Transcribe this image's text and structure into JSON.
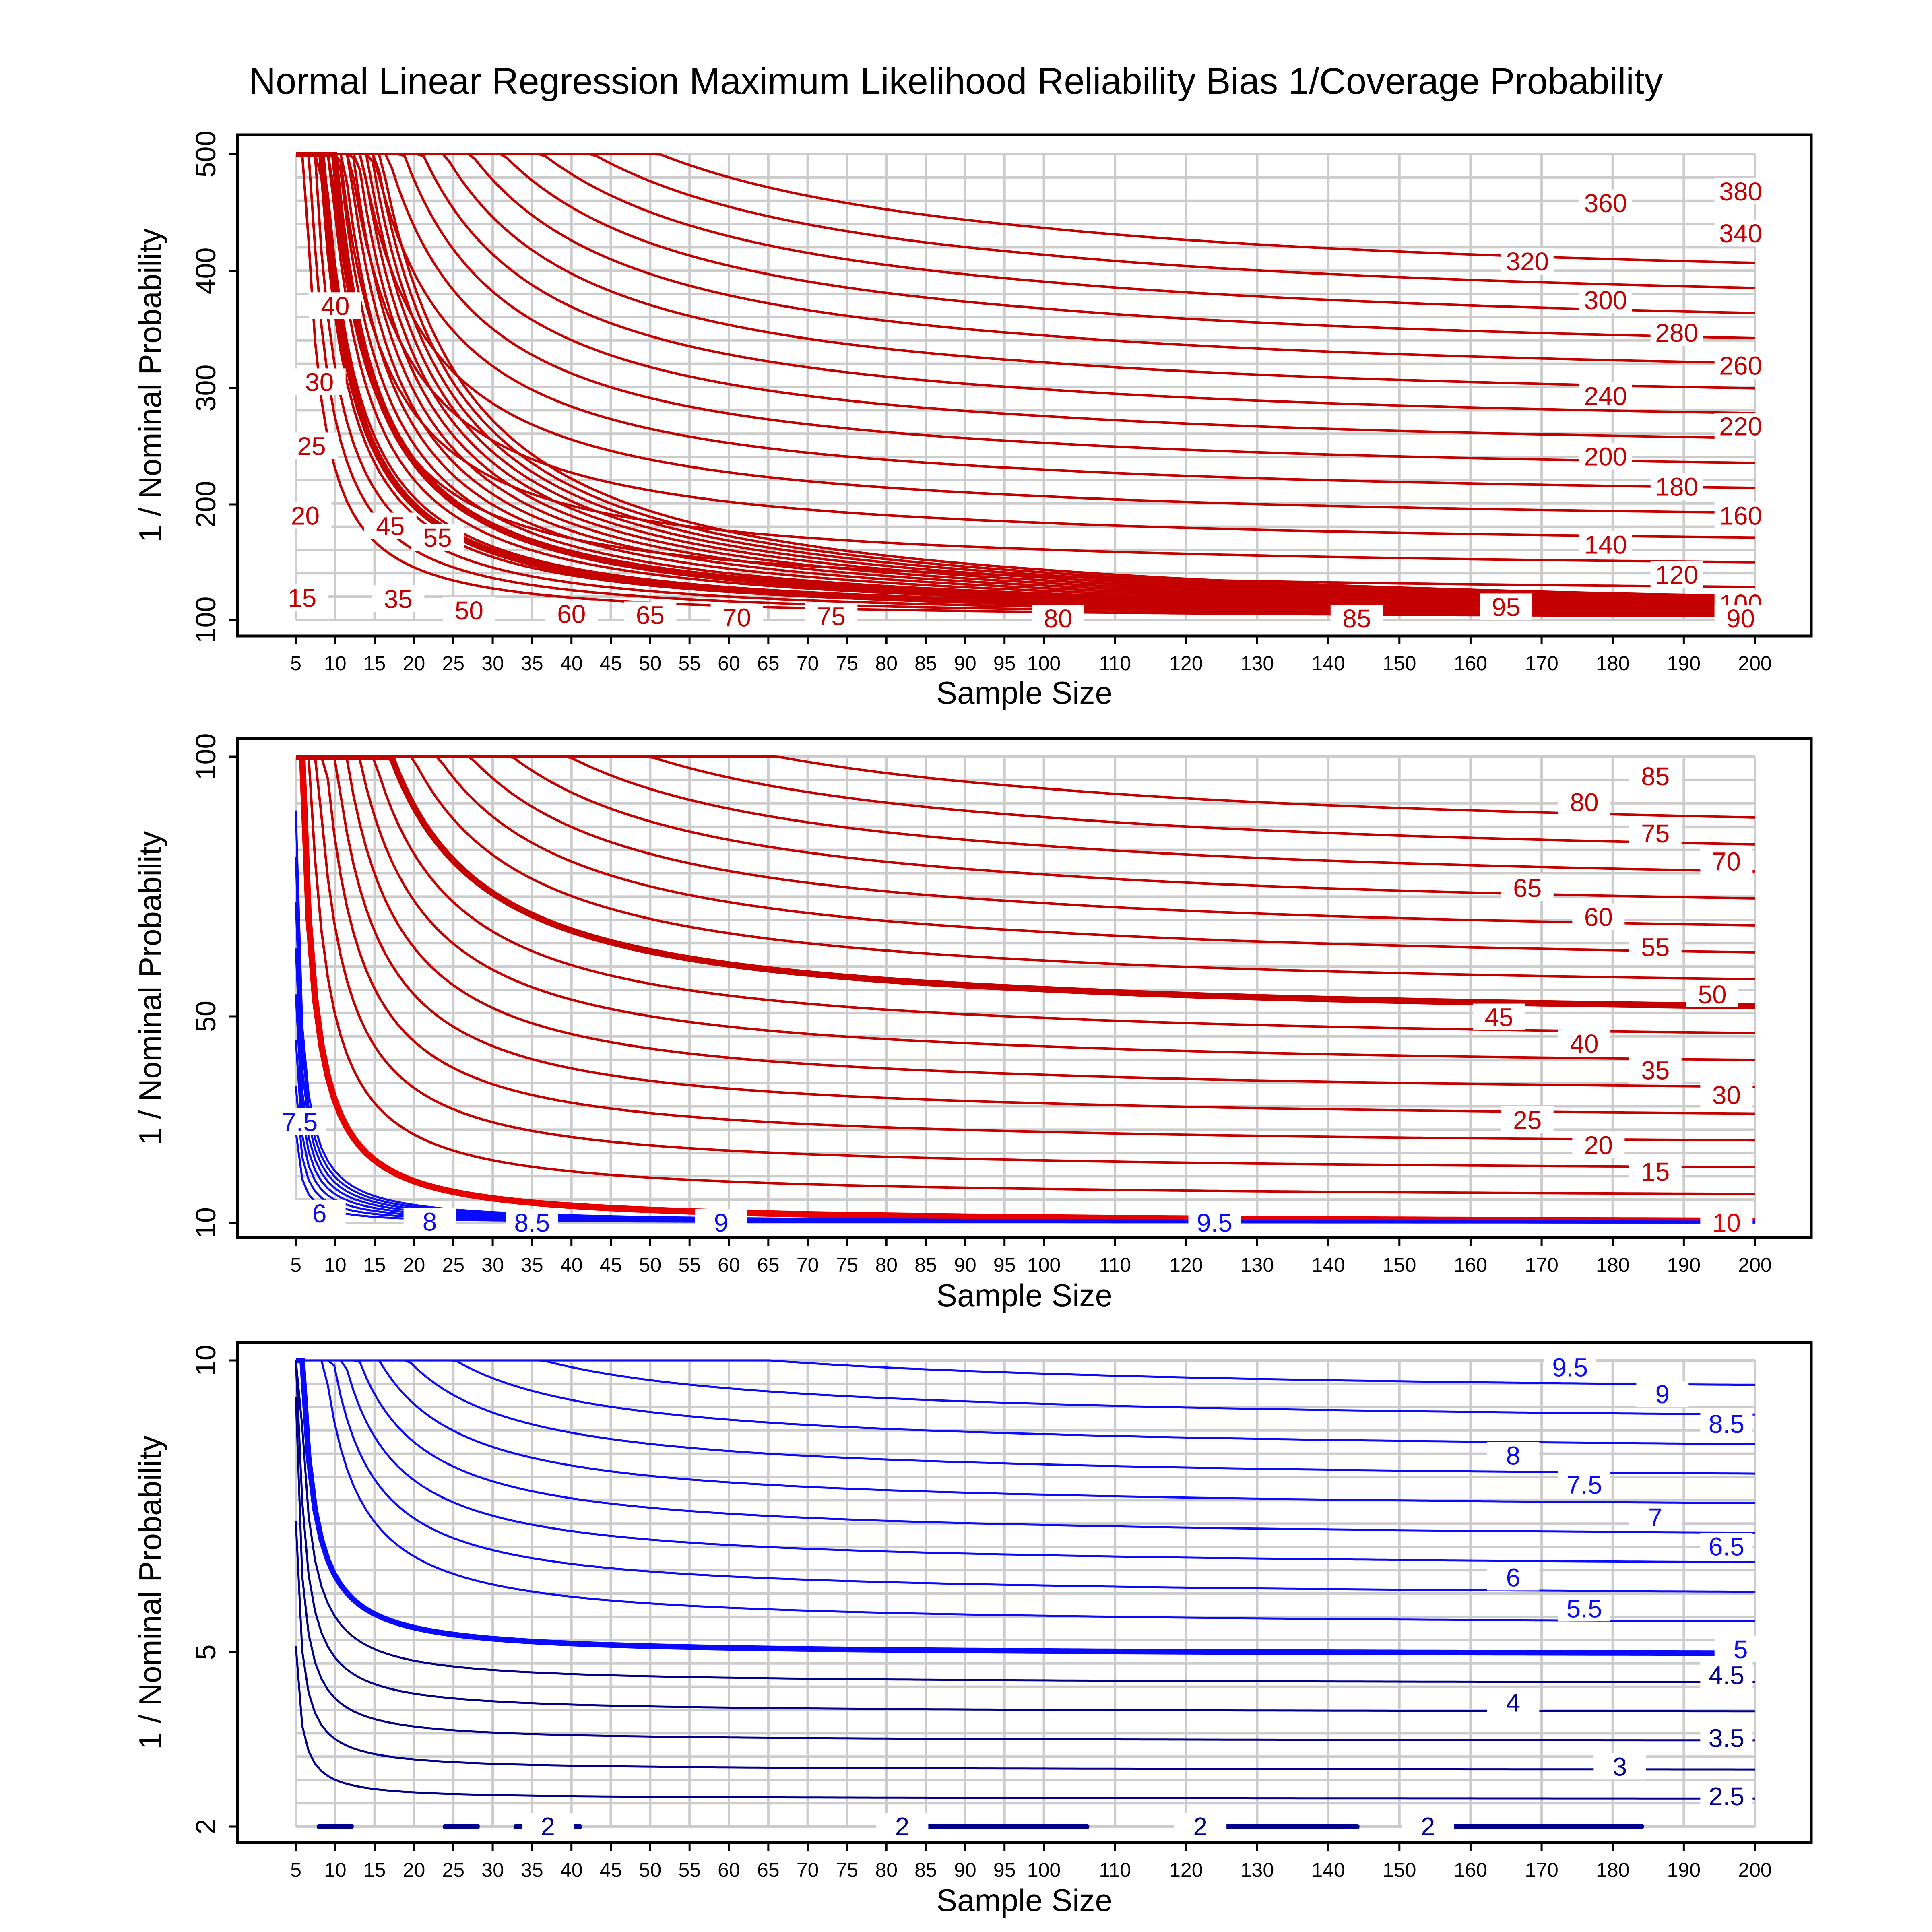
{
  "title": "Normal Linear Regression Maximum Likelihood Reliability Bias 1/Coverage Probability",
  "colors": {
    "red": "#e60000",
    "darkred": "#c40000",
    "blue": "#0a0aff",
    "navy": "#00008c"
  },
  "chart_data": [
    {
      "type": "line",
      "subtype": "contour",
      "panel": "top",
      "xlabel": "Sample Size",
      "ylabel": "1 / Nominal Probability",
      "x_ticks": [
        5,
        10,
        15,
        20,
        25,
        30,
        35,
        40,
        45,
        50,
        55,
        60,
        65,
        70,
        75,
        80,
        85,
        90,
        95,
        100,
        110,
        120,
        130,
        140,
        150,
        160,
        170,
        180,
        190,
        200
      ],
      "x_tick_labels": [
        "5",
        "10",
        "15",
        "20",
        "25",
        "30",
        "35",
        "40",
        "45",
        "50",
        "55",
        "60",
        "65",
        "70",
        "75",
        "80",
        "85",
        "90",
        "95",
        "100",
        "110",
        "120",
        "130",
        "140",
        "150",
        "160",
        "170",
        "180",
        "190",
        "200"
      ],
      "y_ticks": [
        100,
        200,
        300,
        400,
        500
      ],
      "y_tick_labels": [
        "100",
        "200",
        "300",
        "400",
        "500"
      ],
      "ylim": [
        100,
        500
      ],
      "contour_levels": [
        15,
        20,
        25,
        30,
        35,
        40,
        45,
        50,
        55,
        60,
        65,
        70,
        75,
        80,
        85,
        90,
        95,
        100,
        120,
        140,
        160,
        180,
        200,
        220,
        240,
        260,
        280,
        300,
        320,
        340,
        360,
        380
      ],
      "highlighted_levels": [
        45,
        100
      ],
      "line_color": "#c40000",
      "contour_labels": [
        {
          "text": "15",
          "x": 5.8,
          "y": 119
        },
        {
          "text": "20",
          "x": 6.2,
          "y": 190
        },
        {
          "text": "25",
          "x": 7.0,
          "y": 250
        },
        {
          "text": "30",
          "x": 8.0,
          "y": 305
        },
        {
          "text": "40",
          "x": 10.0,
          "y": 370
        },
        {
          "text": "45",
          "x": 17.0,
          "y": 181
        },
        {
          "text": "35",
          "x": 18.0,
          "y": 118
        },
        {
          "text": "55",
          "x": 23.0,
          "y": 171
        },
        {
          "text": "50",
          "x": 27.0,
          "y": 108
        },
        {
          "text": "60",
          "x": 40.0,
          "y": 105
        },
        {
          "text": "65",
          "x": 50.0,
          "y": 104
        },
        {
          "text": "70",
          "x": 61.0,
          "y": 102
        },
        {
          "text": "75",
          "x": 73.0,
          "y": 103
        },
        {
          "text": "80",
          "x": 102.0,
          "y": 101
        },
        {
          "text": "85",
          "x": 144.0,
          "y": 101
        },
        {
          "text": "95",
          "x": 165.0,
          "y": 111
        },
        {
          "text": "100",
          "x": 198.0,
          "y": 114
        },
        {
          "text": "90",
          "x": 198.0,
          "y": 101
        },
        {
          "text": "120",
          "x": 189.0,
          "y": 139
        },
        {
          "text": "140",
          "x": 179.0,
          "y": 165
        },
        {
          "text": "160",
          "x": 198.0,
          "y": 190
        },
        {
          "text": "180",
          "x": 189.0,
          "y": 215
        },
        {
          "text": "200",
          "x": 179.0,
          "y": 241
        },
        {
          "text": "220",
          "x": 198.0,
          "y": 267
        },
        {
          "text": "240",
          "x": 179.0,
          "y": 293
        },
        {
          "text": "260",
          "x": 198.0,
          "y": 319
        },
        {
          "text": "280",
          "x": 189.0,
          "y": 347
        },
        {
          "text": "300",
          "x": 179.0,
          "y": 375
        },
        {
          "text": "320",
          "x": 168.0,
          "y": 408
        },
        {
          "text": "340",
          "x": 198.0,
          "y": 432
        },
        {
          "text": "360",
          "x": 179.0,
          "y": 458
        },
        {
          "text": "380",
          "x": 198.0,
          "y": 468
        }
      ]
    },
    {
      "type": "line",
      "subtype": "contour",
      "panel": "middle",
      "xlabel": "Sample Size",
      "ylabel": "1 / Nominal Probability",
      "x_ticks": [
        5,
        10,
        15,
        20,
        25,
        30,
        35,
        40,
        45,
        50,
        55,
        60,
        65,
        70,
        75,
        80,
        85,
        90,
        95,
        100,
        110,
        120,
        130,
        140,
        150,
        160,
        170,
        180,
        190,
        200
      ],
      "x_tick_labels": [
        "5",
        "10",
        "15",
        "20",
        "25",
        "30",
        "35",
        "40",
        "45",
        "50",
        "55",
        "60",
        "65",
        "70",
        "75",
        "80",
        "85",
        "90",
        "95",
        "100",
        "110",
        "120",
        "130",
        "140",
        "150",
        "160",
        "170",
        "180",
        "190",
        "200"
      ],
      "y_ticks": [
        10,
        50,
        100
      ],
      "y_tick_labels": [
        "10",
        "50",
        "100"
      ],
      "ylim": [
        10,
        100
      ],
      "contour_levels": [
        10,
        15,
        20,
        25,
        30,
        35,
        40,
        45,
        50,
        55,
        60,
        65,
        70,
        75,
        80,
        85
      ],
      "highlighted_levels": [
        10,
        50
      ],
      "blue_levels": [
        6,
        6.5,
        7,
        7.5,
        8,
        8.5,
        9,
        9.5
      ],
      "contour_labels": [
        {
          "text": "85",
          "x": 186.0,
          "y": 96.2
        },
        {
          "text": "80",
          "x": 176.0,
          "y": 91.2
        },
        {
          "text": "75",
          "x": 186.0,
          "y": 85.2
        },
        {
          "text": "70",
          "x": 196.0,
          "y": 79.8
        },
        {
          "text": "65",
          "x": 168.0,
          "y": 74.7
        },
        {
          "text": "60",
          "x": 178.0,
          "y": 69.1
        },
        {
          "text": "55",
          "x": 186.0,
          "y": 63.3
        },
        {
          "text": "50",
          "x": 194.0,
          "y": 54.2
        },
        {
          "text": "45",
          "x": 164.0,
          "y": 49.8
        },
        {
          "text": "40",
          "x": 176.0,
          "y": 44.7
        },
        {
          "text": "35",
          "x": 186.0,
          "y": 39.5
        },
        {
          "text": "30",
          "x": 196.0,
          "y": 34.7
        },
        {
          "text": "25",
          "x": 168.0,
          "y": 29.9
        },
        {
          "text": "20",
          "x": 178.0,
          "y": 25.0
        },
        {
          "text": "15",
          "x": 186.0,
          "y": 19.9
        },
        {
          "text": "10",
          "x": 196.0,
          "y": 10.0
        },
        {
          "text": "9.5",
          "x": 124.0,
          "y": 10.0
        },
        {
          "text": "9",
          "x": 59.0,
          "y": 10.0
        },
        {
          "text": "8.5",
          "x": 35.0,
          "y": 10.0
        },
        {
          "text": "8",
          "x": 22.0,
          "y": 10.2
        },
        {
          "text": "6",
          "x": 8.0,
          "y": 11.8
        },
        {
          "text": "7.5",
          "x": 5.5,
          "y": 29.5
        }
      ]
    },
    {
      "type": "line",
      "subtype": "contour",
      "panel": "bottom",
      "xlabel": "Sample Size",
      "ylabel": "1 / Nominal Probability",
      "x_ticks": [
        5,
        10,
        15,
        20,
        25,
        30,
        35,
        40,
        45,
        50,
        55,
        60,
        65,
        70,
        75,
        80,
        85,
        90,
        95,
        100,
        110,
        120,
        130,
        140,
        150,
        160,
        170,
        180,
        190,
        200
      ],
      "x_tick_labels": [
        "5",
        "10",
        "15",
        "20",
        "25",
        "30",
        "35",
        "40",
        "45",
        "50",
        "55",
        "60",
        "65",
        "70",
        "75",
        "80",
        "85",
        "90",
        "95",
        "100",
        "110",
        "120",
        "130",
        "140",
        "150",
        "160",
        "170",
        "180",
        "190",
        "200"
      ],
      "y_ticks": [
        2,
        5,
        10
      ],
      "y_tick_labels": [
        "2",
        "5",
        "10"
      ],
      "ylim": [
        2,
        10
      ],
      "contour_levels": [
        2,
        2.5,
        3,
        3.5,
        4,
        4.5,
        5,
        5.5,
        6,
        6.5,
        7,
        7.5,
        8,
        8.5,
        9,
        9.5
      ],
      "highlighted_levels": [
        2,
        5
      ],
      "contour_labels": [
        {
          "text": "9.5",
          "x": 174.0,
          "y": 9.88
        },
        {
          "text": "9",
          "x": 187.0,
          "y": 9.42
        },
        {
          "text": "8.5",
          "x": 196.0,
          "y": 8.91
        },
        {
          "text": "8",
          "x": 166.0,
          "y": 8.37
        },
        {
          "text": "7.5",
          "x": 176.0,
          "y": 7.87
        },
        {
          "text": "7",
          "x": 186.0,
          "y": 7.31
        },
        {
          "text": "6.5",
          "x": 196.0,
          "y": 6.81
        },
        {
          "text": "6",
          "x": 166.0,
          "y": 6.28
        },
        {
          "text": "5.5",
          "x": 176.0,
          "y": 5.75
        },
        {
          "text": "5",
          "x": 198.0,
          "y": 5.05
        },
        {
          "text": "4.5",
          "x": 196.0,
          "y": 4.6
        },
        {
          "text": "4",
          "x": 166.0,
          "y": 4.13
        },
        {
          "text": "3.5",
          "x": 196.0,
          "y": 3.52
        },
        {
          "text": "3",
          "x": 181.0,
          "y": 3.03
        },
        {
          "text": "2.5",
          "x": 196.0,
          "y": 2.52
        },
        {
          "text": "2",
          "x": 37.0,
          "y": 2.0
        },
        {
          "text": "2",
          "x": 82.0,
          "y": 2.0
        },
        {
          "text": "2",
          "x": 122.0,
          "y": 2.0
        },
        {
          "text": "2",
          "x": 154.0,
          "y": 2.0
        }
      ]
    }
  ]
}
